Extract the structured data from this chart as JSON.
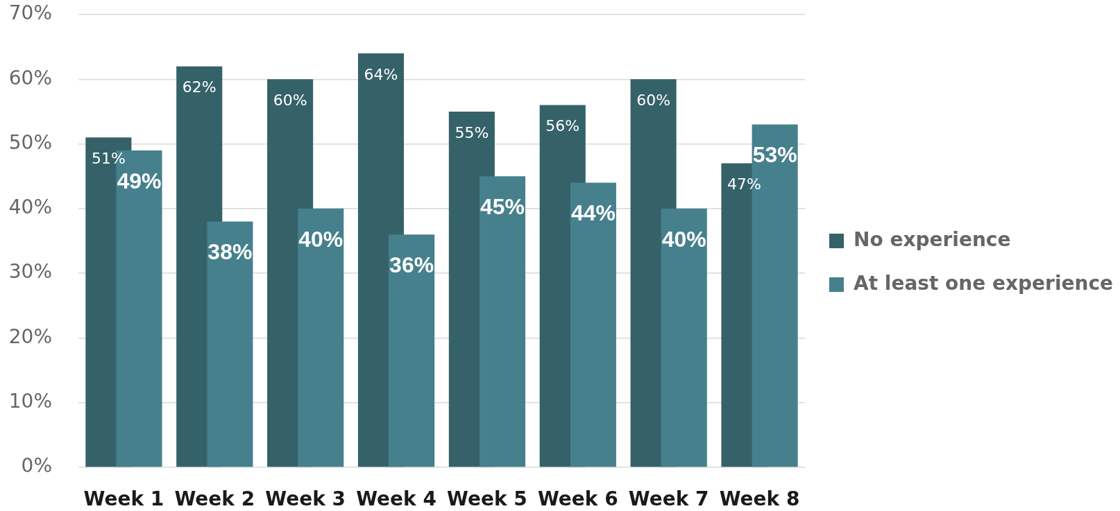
{
  "chart_data": {
    "type": "bar",
    "categories": [
      "Week 1",
      "Week 2",
      "Week 3",
      "Week 4",
      "Week 5",
      "Week 6",
      "Week 7",
      "Week 8"
    ],
    "series": [
      {
        "name": "No experience",
        "color": "#356169",
        "values": [
          51,
          62,
          60,
          64,
          55,
          56,
          60,
          47
        ],
        "value_labels": [
          "51%",
          "62%",
          "60%",
          "64%",
          "55%",
          "56%",
          "60%",
          "47%"
        ]
      },
      {
        "name": "At least one experience",
        "color": "#46808d",
        "values": [
          49,
          38,
          40,
          36,
          45,
          44,
          40,
          53
        ],
        "value_labels": [
          "49%",
          "38%",
          "40%",
          "36%",
          "45%",
          "44%",
          "40%",
          "53%"
        ]
      }
    ],
    "ylim": [
      0,
      70
    ],
    "yticks": [
      {
        "value": 0,
        "label": "0%"
      },
      {
        "value": 10,
        "label": "10%"
      },
      {
        "value": 20,
        "label": "20%"
      },
      {
        "value": 30,
        "label": "30%"
      },
      {
        "value": 40,
        "label": "40%"
      },
      {
        "value": 50,
        "label": "50%"
      },
      {
        "value": 60,
        "label": "60%"
      },
      {
        "value": 70,
        "label": "70%"
      }
    ],
    "grid": "y",
    "legend": "right"
  }
}
